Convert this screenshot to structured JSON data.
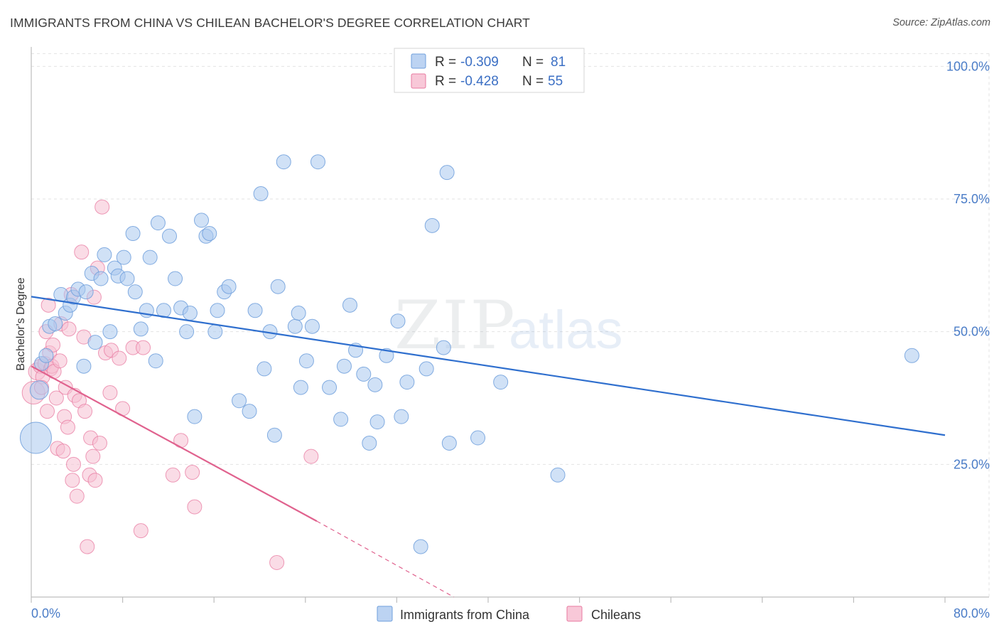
{
  "title": "IMMIGRANTS FROM CHINA VS CHILEAN BACHELOR'S DEGREE CORRELATION CHART",
  "source": "Source: ZipAtlas.com",
  "colors": {
    "china": "#6f9fdc",
    "china_fill": "#aac8ef",
    "china_line": "#2f6fce",
    "chileans": "#e87aa0",
    "chileans_fill": "#f6bfd1",
    "chileans_line": "#e0628e",
    "tick": "#4a7cc7"
  },
  "legend": {
    "r_label": "R =",
    "n_label": "N =",
    "china": {
      "r": "-0.309",
      "n": "81"
    },
    "chileans": {
      "r": "-0.428",
      "n": "55"
    }
  },
  "watermark": {
    "part1": "ZIP",
    "part2": "atlas"
  },
  "chart_data": {
    "type": "scatter",
    "xlabel": "",
    "ylabel": "Bachelor's Degree",
    "xlim": [
      0,
      80
    ],
    "ylim": [
      0,
      105
    ],
    "x_tick_labels": [
      "0.0%",
      "80.0%"
    ],
    "y_ticks": [
      25,
      50,
      75,
      100
    ],
    "y_tick_labels": [
      "25.0%",
      "50.0%",
      "75.0%",
      "100.0%"
    ],
    "grid": true,
    "legend_position": "top-center",
    "series": [
      {
        "name": "Immigrants from China",
        "trend": {
          "x": [
            0,
            80
          ],
          "y": [
            56.6,
            30.5
          ]
        },
        "points": [
          [
            0.4,
            30,
            2.2
          ],
          [
            0.7,
            39,
            1.3
          ],
          [
            0.9,
            44,
            1
          ],
          [
            1.3,
            45.5,
            1
          ],
          [
            1.6,
            51,
            1
          ],
          [
            2.1,
            51.5,
            1
          ],
          [
            2.6,
            57,
            1
          ],
          [
            3.0,
            53.5,
            1
          ],
          [
            3.4,
            55,
            1
          ],
          [
            3.7,
            56.5,
            1
          ],
          [
            4.1,
            58,
            1
          ],
          [
            4.8,
            57.5,
            1
          ],
          [
            4.6,
            43.5,
            1
          ],
          [
            5.3,
            61,
            1
          ],
          [
            5.6,
            48,
            1
          ],
          [
            6.1,
            60,
            1
          ],
          [
            6.4,
            64.5,
            1
          ],
          [
            6.9,
            50,
            1
          ],
          [
            7.3,
            62,
            1
          ],
          [
            7.6,
            60.5,
            1
          ],
          [
            8.1,
            64,
            1
          ],
          [
            8.4,
            60,
            1
          ],
          [
            8.9,
            68.5,
            1
          ],
          [
            9.1,
            57.5,
            1
          ],
          [
            9.6,
            50.5,
            1
          ],
          [
            10.1,
            54,
            1
          ],
          [
            10.4,
            64,
            1
          ],
          [
            10.9,
            44.5,
            1
          ],
          [
            11.1,
            70.5,
            1
          ],
          [
            11.6,
            54,
            1
          ],
          [
            12.1,
            68,
            1
          ],
          [
            12.6,
            60,
            1
          ],
          [
            13.1,
            54.5,
            1
          ],
          [
            13.6,
            50,
            1
          ],
          [
            13.9,
            53.5,
            1
          ],
          [
            14.3,
            34,
            1
          ],
          [
            14.9,
            71,
            1
          ],
          [
            15.3,
            68,
            1
          ],
          [
            15.6,
            68.5,
            1
          ],
          [
            16.1,
            50,
            1
          ],
          [
            16.3,
            54,
            1
          ],
          [
            16.9,
            57.5,
            1
          ],
          [
            17.3,
            58.5,
            1
          ],
          [
            18.2,
            37,
            1
          ],
          [
            19.1,
            35,
            1
          ],
          [
            19.6,
            54,
            1
          ],
          [
            20.1,
            76,
            1
          ],
          [
            20.4,
            43,
            1
          ],
          [
            20.9,
            50,
            1
          ],
          [
            21.3,
            30.5,
            1
          ],
          [
            21.6,
            58.5,
            1
          ],
          [
            22.1,
            82,
            1
          ],
          [
            23.1,
            51,
            1
          ],
          [
            23.4,
            53.5,
            1
          ],
          [
            23.6,
            39.5,
            1
          ],
          [
            24.1,
            44.5,
            1
          ],
          [
            24.6,
            51,
            1
          ],
          [
            25.1,
            82,
            1
          ],
          [
            26.1,
            39.5,
            1
          ],
          [
            27.1,
            33.5,
            1
          ],
          [
            27.4,
            43.5,
            1
          ],
          [
            27.9,
            55,
            1
          ],
          [
            28.4,
            46.5,
            1
          ],
          [
            29.1,
            42,
            1
          ],
          [
            29.6,
            29,
            1
          ],
          [
            30.1,
            40,
            1
          ],
          [
            30.3,
            33,
            1
          ],
          [
            31.1,
            45.5,
            1
          ],
          [
            32.1,
            52,
            1
          ],
          [
            32.4,
            34,
            1
          ],
          [
            32.9,
            40.5,
            1
          ],
          [
            34.1,
            9.5,
            1
          ],
          [
            34.6,
            43,
            1
          ],
          [
            35.1,
            70,
            1
          ],
          [
            36.1,
            47,
            1
          ],
          [
            36.4,
            80,
            1
          ],
          [
            36.6,
            29,
            1
          ],
          [
            39.1,
            30,
            1
          ],
          [
            41.1,
            40.5,
            1
          ],
          [
            46.1,
            23,
            1
          ],
          [
            77.1,
            45.5,
            1
          ]
        ]
      },
      {
        "name": "Chileans",
        "trend": {
          "x": [
            0,
            25
          ],
          "y": [
            43.5,
            14.3
          ],
          "dashed_to": {
            "x": 37,
            "y": 0
          }
        },
        "points": [
          [
            0.2,
            38.5,
            1.6
          ],
          [
            0.5,
            42.5,
            1.2
          ],
          [
            0.8,
            43.5,
            1
          ],
          [
            1.0,
            41.5,
            1
          ],
          [
            1.2,
            44,
            1
          ],
          [
            1.4,
            35,
            1
          ],
          [
            1.5,
            55,
            1
          ],
          [
            1.6,
            46,
            1
          ],
          [
            1.7,
            43,
            1
          ],
          [
            1.8,
            43.5,
            1
          ],
          [
            1.9,
            47.5,
            1
          ],
          [
            2.0,
            42.5,
            1
          ],
          [
            2.2,
            37.5,
            1
          ],
          [
            2.3,
            28,
            1
          ],
          [
            2.5,
            44.5,
            1
          ],
          [
            2.6,
            51.5,
            1
          ],
          [
            2.8,
            27.5,
            1
          ],
          [
            2.9,
            34,
            1
          ],
          [
            3.0,
            39.5,
            1
          ],
          [
            3.2,
            32,
            1
          ],
          [
            3.3,
            50.5,
            1
          ],
          [
            3.5,
            57,
            1
          ],
          [
            3.6,
            22,
            1
          ],
          [
            3.7,
            25,
            1
          ],
          [
            3.8,
            38,
            1
          ],
          [
            4.0,
            19,
            1
          ],
          [
            4.2,
            37,
            1
          ],
          [
            4.4,
            65,
            1
          ],
          [
            4.6,
            49,
            1
          ],
          [
            4.7,
            35,
            1
          ],
          [
            4.9,
            9.5,
            1
          ],
          [
            5.1,
            23,
            1
          ],
          [
            5.2,
            30,
            1
          ],
          [
            5.4,
            26.5,
            1
          ],
          [
            5.5,
            56.5,
            1
          ],
          [
            5.6,
            22,
            1
          ],
          [
            5.8,
            62,
            1
          ],
          [
            6.0,
            29,
            1
          ],
          [
            6.2,
            73.5,
            1
          ],
          [
            6.5,
            46,
            1
          ],
          [
            6.9,
            38.5,
            1
          ],
          [
            7.0,
            46.5,
            1
          ],
          [
            7.7,
            45,
            1
          ],
          [
            8.0,
            35.5,
            1
          ],
          [
            8.9,
            47,
            1
          ],
          [
            9.6,
            12.5,
            1
          ],
          [
            9.8,
            47,
            1
          ],
          [
            12.4,
            23,
            1
          ],
          [
            13.1,
            29.5,
            1
          ],
          [
            14.1,
            23.5,
            1
          ],
          [
            14.3,
            17,
            1
          ],
          [
            21.5,
            6.5,
            1
          ],
          [
            24.5,
            26.5,
            1
          ],
          [
            1.3,
            50,
            1
          ],
          [
            0.9,
            39.5,
            1
          ]
        ]
      }
    ]
  },
  "bottom_legend": {
    "china": "Immigrants from China",
    "chileans": "Chileans"
  }
}
